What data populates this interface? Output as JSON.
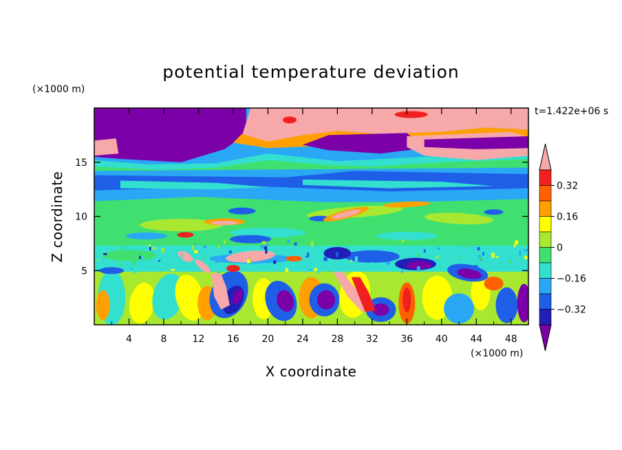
{
  "chart_data": {
    "type": "heatmap",
    "title": "potential temperature deviation",
    "xlabel": "X coordinate",
    "ylabel": "Z coordinate",
    "x_unit": "(×1000 m)",
    "y_unit": "(×1000 m)",
    "time_label": "t=1.422e+06 s",
    "xlim": [
      0,
      50
    ],
    "ylim": [
      0,
      20
    ],
    "x_ticks": [
      4,
      8,
      12,
      16,
      20,
      24,
      28,
      32,
      36,
      40,
      44,
      48
    ],
    "y_ticks": [
      5,
      10,
      15
    ],
    "x_tick_labels": [
      "4",
      "8",
      "12",
      "16",
      "20",
      "24",
      "28",
      "32",
      "36",
      "40",
      "44",
      "48"
    ],
    "y_tick_labels": [
      "5",
      "10",
      "15"
    ],
    "colorbar": {
      "levels": [
        -0.4,
        -0.32,
        -0.24,
        -0.16,
        -0.08,
        0,
        0.08,
        0.16,
        0.24,
        0.32,
        0.4
      ],
      "tick_labels": [
        "0.32",
        "0.16",
        "0",
        "−0.16",
        "−0.32"
      ],
      "tick_values": [
        0.32,
        0.16,
        0,
        -0.16,
        -0.32
      ],
      "colors": [
        "#7b00a8",
        "#2020b8",
        "#1f5fe8",
        "#2aa8f5",
        "#33e0d0",
        "#40e070",
        "#a8e830",
        "#ffff00",
        "#ffa000",
        "#ff6000",
        "#f02020",
        "#f7a8a8"
      ]
    }
  }
}
